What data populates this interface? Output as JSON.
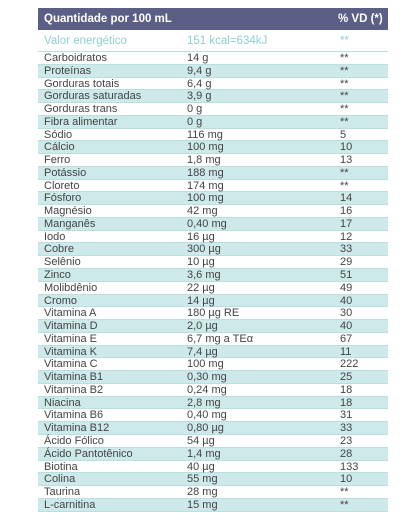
{
  "table": {
    "header": [
      "Quantidade por 100 mL",
      "% VD (*)"
    ],
    "rows": [
      [
        "Valor energético",
        "151 kcal=634kJ",
        "**"
      ],
      [
        "Carboidratos",
        "14 g",
        "**"
      ],
      [
        "Proteínas",
        "9,4 g",
        "**"
      ],
      [
        "Gorduras totais",
        "6,4 g",
        "**"
      ],
      [
        "Gorduras saturadas",
        "3,9 g",
        "**"
      ],
      [
        "Gorduras trans",
        "0 g",
        "**"
      ],
      [
        "Fibra alimentar",
        "0 g",
        "**"
      ],
      [
        "Sódio",
        "116 mg",
        "5"
      ],
      [
        "Cálcio",
        "100 mg",
        "10"
      ],
      [
        "Ferro",
        "1,8 mg",
        "13"
      ],
      [
        "Potássio",
        "188 mg",
        "**"
      ],
      [
        "Cloreto",
        "174 mg",
        "**"
      ],
      [
        "Fósforo",
        "100 mg",
        "14"
      ],
      [
        "Magnésio",
        "42 mg",
        "16"
      ],
      [
        "Manganês",
        "0,40 mg",
        "17"
      ],
      [
        "Iodo",
        "16 µg",
        "12"
      ],
      [
        "Cobre",
        "300 µg",
        "33"
      ],
      [
        "Selênio",
        "10 µg",
        "29"
      ],
      [
        "Zinco",
        "3,6 mg",
        "51"
      ],
      [
        "Molibdênio",
        "22 µg",
        "49"
      ],
      [
        "Cromo",
        "14 µg",
        "40"
      ],
      [
        "Vitamina A",
        "180 µg RE",
        "30"
      ],
      [
        "Vitamina D",
        "2,0 µg",
        "40"
      ],
      [
        "Vitamina E",
        "6,7 mg a TEα",
        "67"
      ],
      [
        "Vitamina K",
        "7,4 µg",
        "11"
      ],
      [
        "Vitamina C",
        "100 mg",
        "222"
      ],
      [
        "Vitamina B1",
        "0,30 mg",
        "25"
      ],
      [
        "Vitamina B2",
        "0,24 mg",
        "18"
      ],
      [
        "Niacina",
        "2,8 mg",
        "18"
      ],
      [
        "Vitamina B6",
        "0,40 mg",
        "31"
      ],
      [
        "Vitamina B12",
        "0,80 µg",
        "33"
      ],
      [
        "Ácido Fólico",
        "54 µg",
        "23"
      ],
      [
        "Ácido Pantotênico",
        "1,4 mg",
        "28"
      ],
      [
        "Biotina",
        "40 µg",
        "133"
      ],
      [
        "Colina",
        "55 mg",
        "10"
      ],
      [
        "Taurina",
        "28 mg",
        "**"
      ],
      [
        "L-carnitina",
        "15 mg",
        "**"
      ]
    ]
  }
}
